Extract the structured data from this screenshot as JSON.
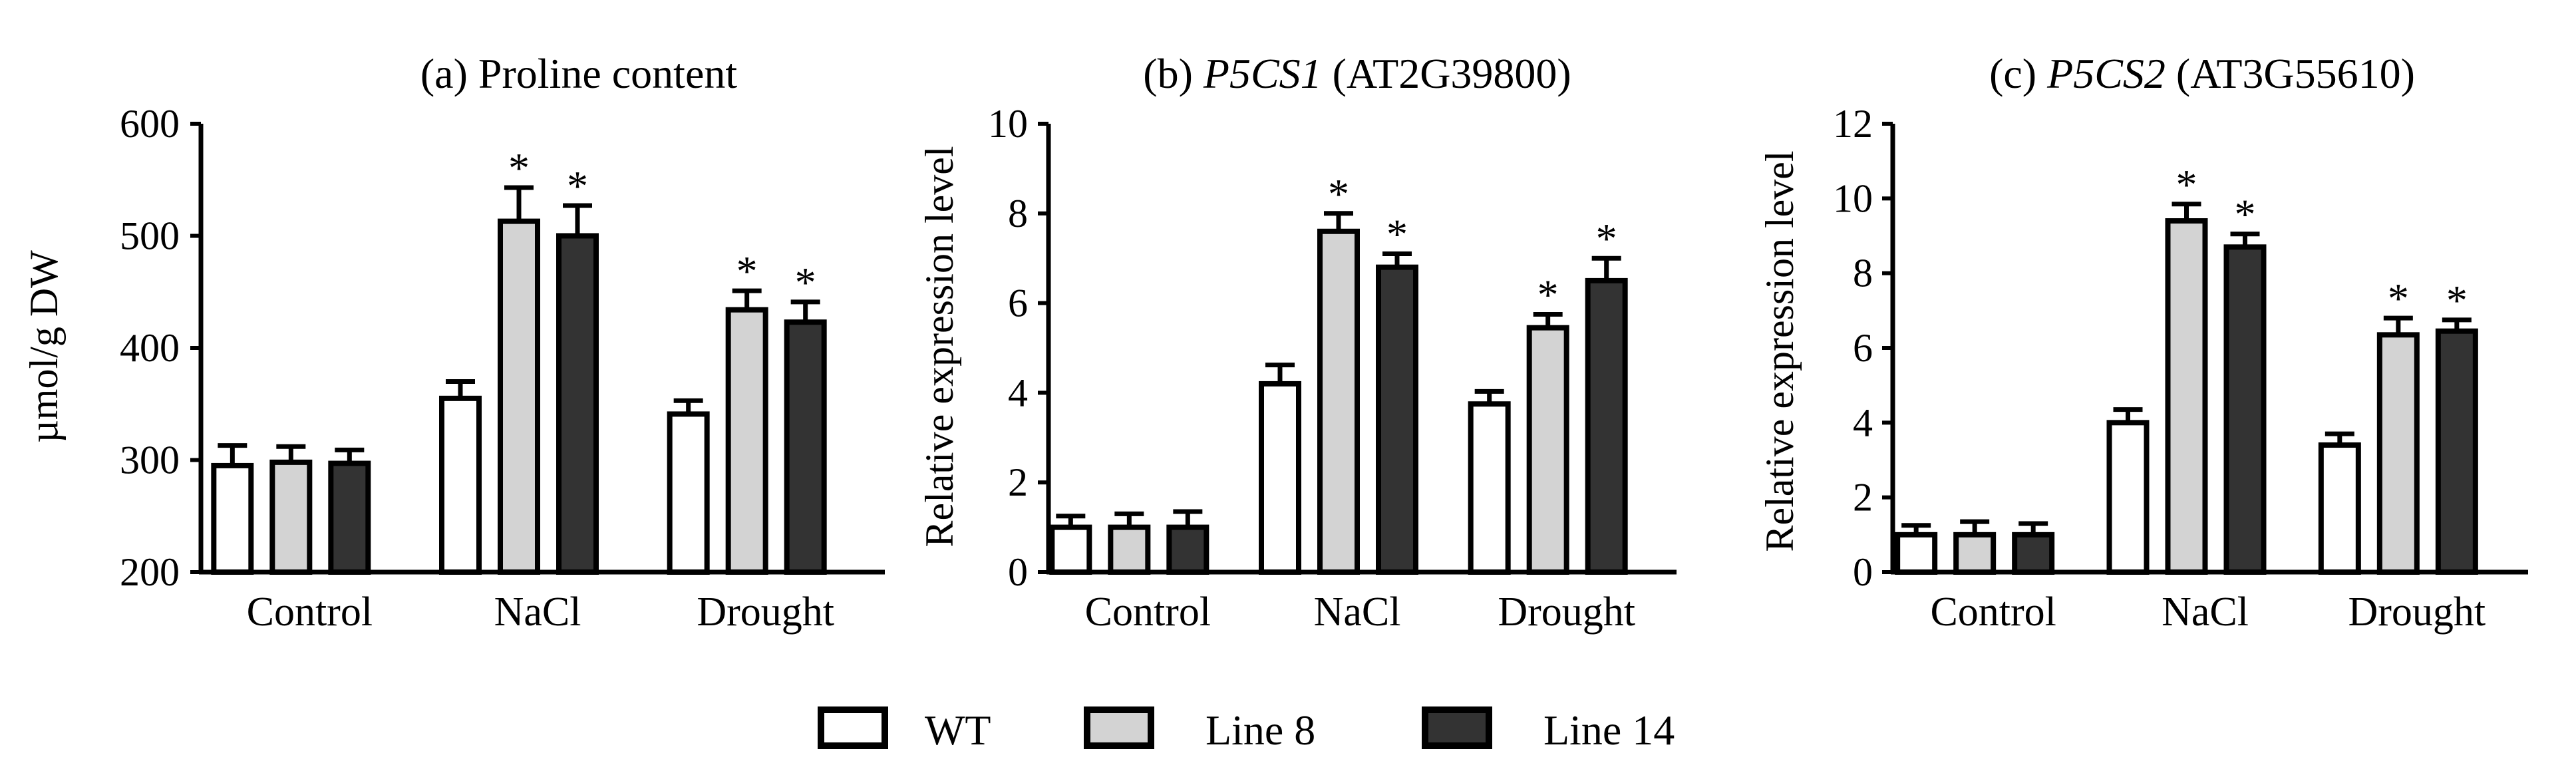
{
  "legend": [
    {
      "name": "WT",
      "color": "#ffffff"
    },
    {
      "name": "Line 8",
      "color": "#d3d3d3"
    },
    {
      "name": "Line 14",
      "color": "#333333"
    }
  ],
  "asterisk": "*",
  "chart_data": [
    {
      "type": "bar",
      "title_prefix": "(a) Proline content",
      "title_gene": "",
      "title_suffix": "",
      "xlabel": "",
      "ylabel": "µmol/g DW",
      "ylim": [
        200,
        600
      ],
      "yticks": [
        "200",
        "300",
        "400",
        "500",
        "600"
      ],
      "categories": [
        "Control",
        "NaCl",
        "Drought"
      ],
      "series": [
        {
          "name": "WT",
          "values": [
            295,
            355,
            341
          ],
          "errors": [
            18,
            15,
            12
          ],
          "significant": [
            false,
            false,
            false
          ]
        },
        {
          "name": "Line 8",
          "values": [
            298,
            513,
            434
          ],
          "errors": [
            14,
            30,
            17
          ],
          "significant": [
            false,
            true,
            true
          ]
        },
        {
          "name": "Line 14",
          "values": [
            297,
            500,
            423
          ],
          "errors": [
            12,
            27,
            18
          ],
          "significant": [
            false,
            true,
            true
          ]
        }
      ]
    },
    {
      "type": "bar",
      "title_prefix": "(b) ",
      "title_gene": "P5CS1",
      "title_suffix": " (AT2G39800)",
      "xlabel": "",
      "ylabel": "Relative expression level",
      "ylim": [
        0,
        10
      ],
      "yticks": [
        "0",
        "2",
        "4",
        "6",
        "8",
        "10"
      ],
      "categories": [
        "Control",
        "NaCl",
        "Drought"
      ],
      "series": [
        {
          "name": "WT",
          "values": [
            1.0,
            4.2,
            3.75
          ],
          "errors": [
            0.25,
            0.42,
            0.28
          ],
          "significant": [
            false,
            false,
            false
          ]
        },
        {
          "name": "Line 8",
          "values": [
            1.0,
            7.6,
            5.45
          ],
          "errors": [
            0.3,
            0.4,
            0.3
          ],
          "significant": [
            false,
            true,
            true
          ]
        },
        {
          "name": "Line 14",
          "values": [
            1.0,
            6.8,
            6.5
          ],
          "errors": [
            0.35,
            0.3,
            0.5
          ],
          "significant": [
            false,
            true,
            true
          ]
        }
      ]
    },
    {
      "type": "bar",
      "title_prefix": "(c) ",
      "title_gene": "P5CS2",
      "title_suffix": " (AT3G55610)",
      "xlabel": "",
      "ylabel": "Relative expression level",
      "ylim": [
        0,
        12
      ],
      "yticks": [
        "0",
        "2",
        "4",
        "6",
        "8",
        "10",
        "12"
      ],
      "categories": [
        "Control",
        "NaCl",
        "Drought"
      ],
      "series": [
        {
          "name": "WT",
          "values": [
            1.0,
            4.0,
            3.4
          ],
          "errors": [
            0.25,
            0.35,
            0.3
          ],
          "significant": [
            false,
            false,
            false
          ]
        },
        {
          "name": "Line 8",
          "values": [
            1.0,
            9.4,
            6.35
          ],
          "errors": [
            0.35,
            0.45,
            0.45
          ],
          "significant": [
            false,
            true,
            true
          ]
        },
        {
          "name": "Line 14",
          "values": [
            1.0,
            8.7,
            6.45
          ],
          "errors": [
            0.3,
            0.35,
            0.3
          ],
          "significant": [
            false,
            true,
            true
          ]
        }
      ]
    }
  ]
}
